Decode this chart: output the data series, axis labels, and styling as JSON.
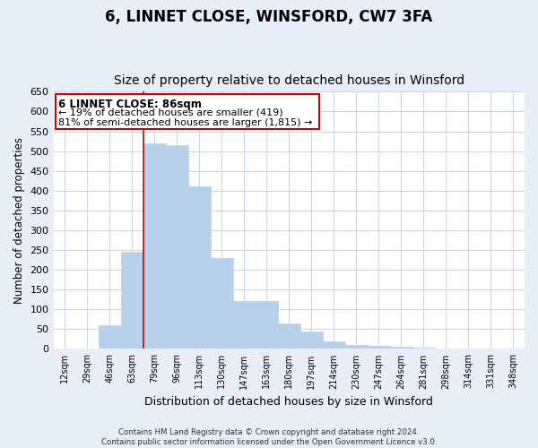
{
  "title": "6, LINNET CLOSE, WINSFORD, CW7 3FA",
  "subtitle": "Size of property relative to detached houses in Winsford",
  "xlabel": "Distribution of detached houses by size in Winsford",
  "ylabel": "Number of detached properties",
  "bins": [
    "12sqm",
    "29sqm",
    "46sqm",
    "63sqm",
    "79sqm",
    "96sqm",
    "113sqm",
    "130sqm",
    "147sqm",
    "163sqm",
    "180sqm",
    "197sqm",
    "214sqm",
    "230sqm",
    "247sqm",
    "264sqm",
    "281sqm",
    "298sqm",
    "314sqm",
    "331sqm",
    "348sqm"
  ],
  "values": [
    0,
    0,
    60,
    245,
    520,
    515,
    410,
    230,
    120,
    120,
    65,
    45,
    20,
    10,
    8,
    5,
    3,
    2,
    2,
    0,
    2
  ],
  "bar_color": "#b8d0ea",
  "vline_color": "#cc0000",
  "vline_bar_index": 4,
  "ylim": [
    0,
    650
  ],
  "yticks": [
    0,
    50,
    100,
    150,
    200,
    250,
    300,
    350,
    400,
    450,
    500,
    550,
    600,
    650
  ],
  "annotation_title": "6 LINNET CLOSE: 86sqm",
  "annotation_line1": "← 19% of detached houses are smaller (419)",
  "annotation_line2": "81% of semi-detached houses are larger (1,815) →",
  "footer_line1": "Contains HM Land Registry data © Crown copyright and database right 2024.",
  "footer_line2": "Contains public sector information licensed under the Open Government Licence v3.0.",
  "fig_bg_color": "#e8eef8",
  "plot_bg_color": "#ffffff",
  "grid_color": "#c8d4e8",
  "title_fontsize": 12,
  "subtitle_fontsize": 10,
  "annotation_box_edgecolor": "#cc0000",
  "annotation_box_facecolor": "#ffffff"
}
